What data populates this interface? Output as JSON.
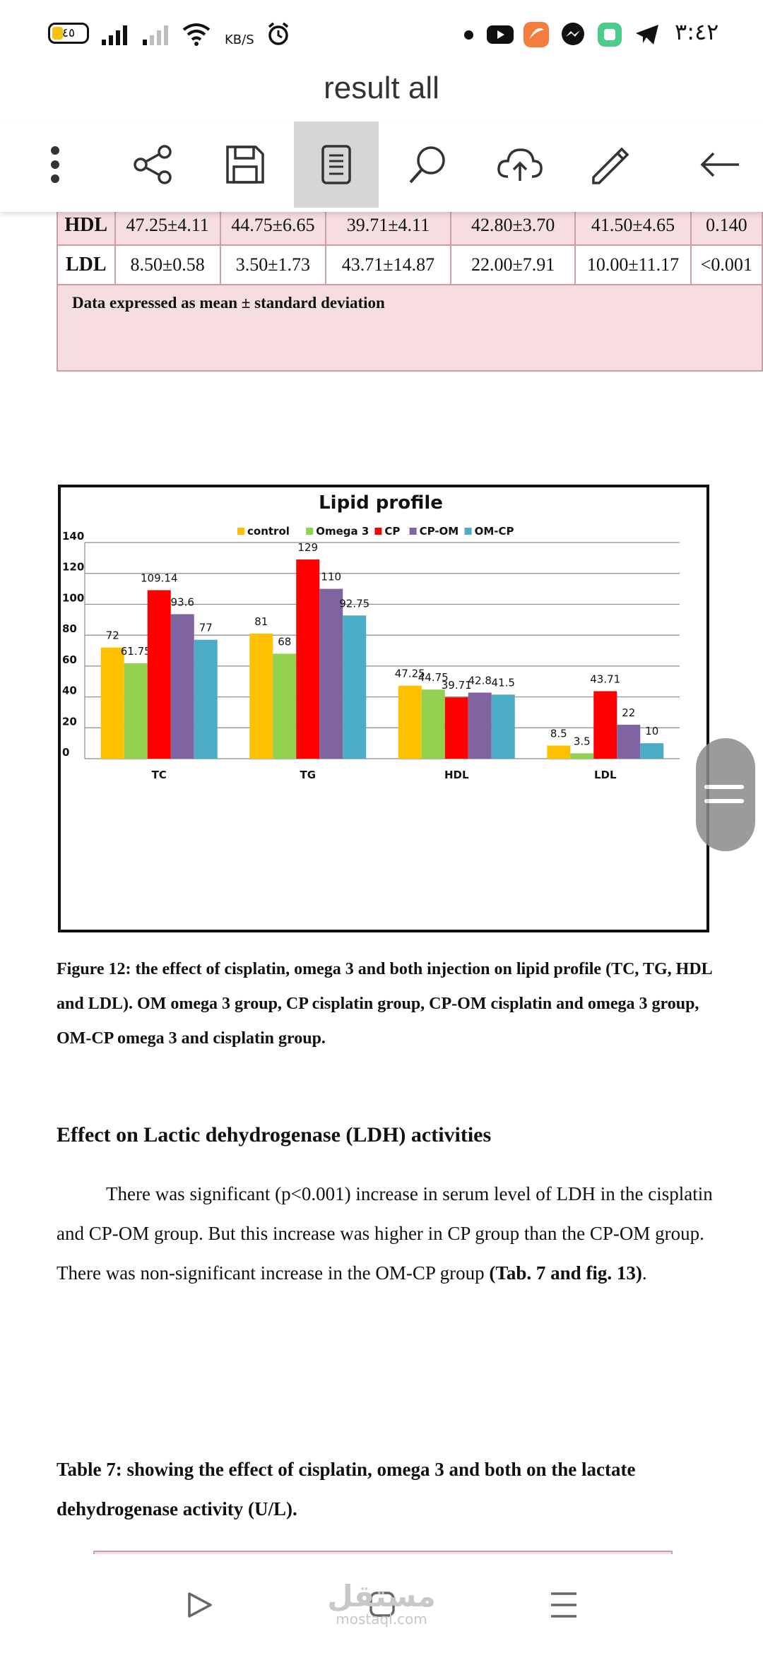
{
  "status_bar": {
    "battery": "٤٥",
    "speed": "KB/S",
    "time": "٣:٤٢",
    "icons": [
      "battery-icon",
      "signal-icon",
      "signal-icon",
      "wifi-icon",
      "alarm-icon",
      "dot-icon",
      "youtube-icon",
      "app-icon",
      "messenger-icon",
      "app-icon",
      "telegram-icon"
    ]
  },
  "app_bar": {
    "title": "result all"
  },
  "toolbar": {
    "buttons": [
      "more-icon",
      "share-icon",
      "save-icon",
      "page-view-icon",
      "search-icon",
      "cloud-upload-icon",
      "edit-icon",
      "back-icon"
    ],
    "active": "page-view-icon"
  },
  "table": {
    "rows": [
      {
        "label": "HDL",
        "cells": [
          "47.25±4.11",
          "44.75±6.65",
          "39.71±4.11",
          "42.80±3.70",
          "41.50±4.65",
          "0.140"
        ]
      },
      {
        "label": "LDL",
        "cells": [
          "8.50±0.58",
          "3.50±1.73",
          "43.71±14.87",
          "22.00±7.91",
          "10.00±11.17",
          "<0.001"
        ]
      }
    ],
    "note": "Data expressed as mean ± standard deviation"
  },
  "chart_data": {
    "type": "bar",
    "title": "Lipid profile",
    "categories": [
      "TC",
      "TG",
      "HDL",
      "LDL"
    ],
    "series": [
      {
        "name": "control",
        "color": "#ffc000",
        "values": [
          72,
          81,
          47.25,
          8.5
        ],
        "labels": [
          "72",
          "81",
          "47.25",
          "8.5"
        ]
      },
      {
        "name": "Omega 3",
        "color": "#92d050",
        "values": [
          61.75,
          68,
          44.75,
          3.5
        ],
        "labels": [
          "61.75",
          "68",
          "44.75",
          "3.5"
        ]
      },
      {
        "name": "CP",
        "color": "#ff0000",
        "values": [
          109.14,
          129,
          39.71,
          43.71
        ],
        "labels": [
          "109.14",
          "129",
          "39.71",
          "43.71"
        ]
      },
      {
        "name": "CP-OM",
        "color": "#8064a2",
        "values": [
          93.6,
          110,
          42.8,
          22
        ],
        "labels": [
          "93.6",
          "110",
          "42.8",
          "22"
        ]
      },
      {
        "name": "OM-CP",
        "color": "#4bacc6",
        "values": [
          77,
          92.75,
          41.5,
          10
        ],
        "labels": [
          "77",
          "92.75",
          "41.5",
          "10"
        ]
      }
    ],
    "ylim": [
      0,
      140
    ],
    "yticks": [
      "0",
      "20",
      "40",
      "60",
      "80",
      "100",
      "120",
      "140"
    ],
    "grid": true,
    "legend": "top"
  },
  "figure_caption": "Figure 12: the effect of cisplatin, omega 3 and both injection on lipid profile (TC, TG, HDL and LDL). OM omega 3 group, CP cisplatin group, CP-OM cisplatin and omega 3 group, OM-CP omega 3 and cisplatin group.",
  "section_heading": "Effect on Lactic dehydrogenase (LDH) activities",
  "paragraph": {
    "text": "There was significant (p<0.001) increase in serum level of LDH in the cisplatin and CP-OM group. But this increase was higher in CP group than the CP-OM group. There was non-significant increase in the OM-CP group ",
    "bold_ref": "(Tab. 7 and fig. 13)",
    "end": "."
  },
  "table_caption": "Table 7: showing the effect of cisplatin, omega 3 and both on the lactate dehydrogenase activity (U/L).",
  "nav_bar": {
    "watermark_arabic": "مستقل",
    "watermark_latin": "mostaql.com",
    "icons": [
      "back-triangle-icon",
      "home-square-icon",
      "menu-lines-icon"
    ]
  }
}
